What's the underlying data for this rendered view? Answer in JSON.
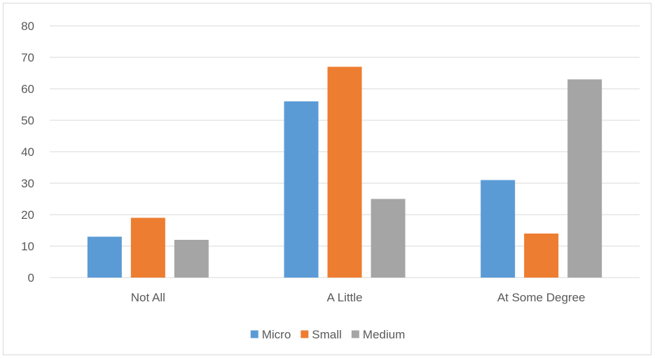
{
  "chart_data": {
    "type": "bar",
    "title": "",
    "xlabel": "",
    "ylabel": "",
    "categories": [
      "Not All",
      "A Little",
      "At Some Degree"
    ],
    "series": [
      {
        "name": "Micro",
        "color": "#5b9bd5",
        "values": [
          13,
          56,
          31
        ]
      },
      {
        "name": "Small",
        "color": "#ed7d31",
        "values": [
          19,
          67,
          14
        ]
      },
      {
        "name": "Medium",
        "color": "#a5a5a5",
        "values": [
          12,
          25,
          63
        ]
      }
    ],
    "ylim": [
      0,
      80
    ],
    "yticks": [
      "0",
      "10",
      "20",
      "30",
      "40",
      "50",
      "60",
      "70",
      "80"
    ],
    "grid": true,
    "legend_position": "bottom"
  }
}
